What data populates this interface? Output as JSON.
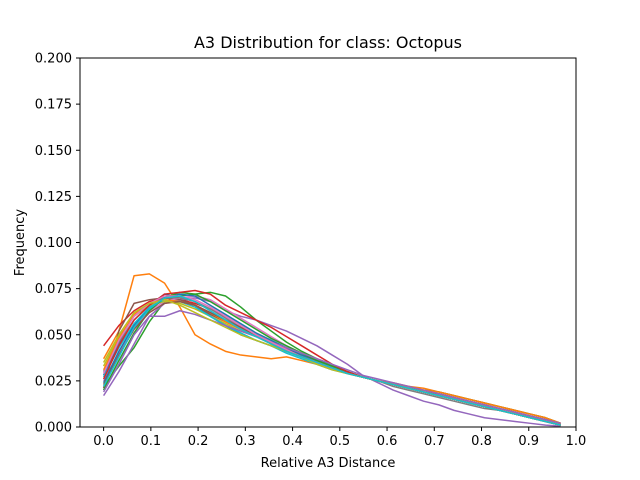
{
  "chart_data": {
    "type": "line",
    "title": "A3 Distribution for class: Octopus",
    "xlabel": "Relative A3 Distance",
    "ylabel": "Frequency",
    "xlim": [
      -0.05,
      1.0
    ],
    "ylim": [
      0.0,
      0.2
    ],
    "xticks": [
      "0.0",
      "0.1",
      "0.2",
      "0.3",
      "0.4",
      "0.5",
      "0.6",
      "0.7",
      "0.8",
      "0.9",
      "1.0"
    ],
    "yticks": [
      "0.000",
      "0.025",
      "0.050",
      "0.075",
      "0.100",
      "0.125",
      "0.150",
      "0.175",
      "0.200"
    ],
    "grid": false,
    "legend": "none",
    "x": [
      0.0,
      0.0323,
      0.0645,
      0.0968,
      0.129,
      0.1613,
      0.1935,
      0.2258,
      0.2581,
      0.2903,
      0.3226,
      0.3548,
      0.3871,
      0.4194,
      0.4516,
      0.4839,
      0.5161,
      0.5484,
      0.5806,
      0.6129,
      0.6452,
      0.6774,
      0.7097,
      0.7419,
      0.7742,
      0.8065,
      0.8387,
      0.871,
      0.9032,
      0.9355,
      0.9677
    ],
    "series": [
      {
        "color": "#1f77b4",
        "values": [
          0.028,
          0.045,
          0.058,
          0.066,
          0.072,
          0.07,
          0.066,
          0.06,
          0.055,
          0.05,
          0.047,
          0.044,
          0.041,
          0.038,
          0.035,
          0.032,
          0.029,
          0.027,
          0.025,
          0.023,
          0.021,
          0.019,
          0.017,
          0.015,
          0.013,
          0.011,
          0.009,
          0.007,
          0.005,
          0.003,
          0.001
        ]
      },
      {
        "color": "#ff7f0e",
        "values": [
          0.037,
          0.052,
          0.082,
          0.083,
          0.078,
          0.065,
          0.05,
          0.045,
          0.041,
          0.039,
          0.038,
          0.037,
          0.038,
          0.036,
          0.034,
          0.031,
          0.029,
          0.027,
          0.025,
          0.024,
          0.022,
          0.021,
          0.019,
          0.017,
          0.015,
          0.013,
          0.011,
          0.009,
          0.007,
          0.005,
          0.002
        ]
      },
      {
        "color": "#2ca02c",
        "values": [
          0.022,
          0.033,
          0.043,
          0.057,
          0.068,
          0.071,
          0.072,
          0.073,
          0.071,
          0.065,
          0.058,
          0.052,
          0.046,
          0.041,
          0.037,
          0.033,
          0.03,
          0.027,
          0.025,
          0.023,
          0.021,
          0.02,
          0.019,
          0.017,
          0.015,
          0.013,
          0.011,
          0.009,
          0.007,
          0.005,
          0.002
        ]
      },
      {
        "color": "#d62728",
        "values": [
          0.044,
          0.055,
          0.063,
          0.068,
          0.07,
          0.069,
          0.067,
          0.064,
          0.06,
          0.055,
          0.05,
          0.046,
          0.042,
          0.039,
          0.036,
          0.033,
          0.03,
          0.027,
          0.025,
          0.023,
          0.021,
          0.019,
          0.018,
          0.016,
          0.014,
          0.012,
          0.01,
          0.008,
          0.006,
          0.004,
          0.002
        ]
      },
      {
        "color": "#9467bd",
        "values": [
          0.017,
          0.03,
          0.045,
          0.06,
          0.067,
          0.069,
          0.07,
          0.068,
          0.063,
          0.06,
          0.058,
          0.055,
          0.052,
          0.048,
          0.044,
          0.039,
          0.034,
          0.028,
          0.024,
          0.02,
          0.017,
          0.014,
          0.012,
          0.009,
          0.007,
          0.005,
          0.004,
          0.003,
          0.002,
          0.001,
          0.0005
        ]
      },
      {
        "color": "#8c564b",
        "values": [
          0.021,
          0.052,
          0.067,
          0.069,
          0.07,
          0.069,
          0.066,
          0.061,
          0.057,
          0.053,
          0.05,
          0.046,
          0.042,
          0.038,
          0.035,
          0.032,
          0.03,
          0.027,
          0.025,
          0.023,
          0.021,
          0.019,
          0.017,
          0.015,
          0.013,
          0.011,
          0.009,
          0.007,
          0.005,
          0.003,
          0.001
        ]
      },
      {
        "color": "#e377c2",
        "values": [
          0.025,
          0.04,
          0.053,
          0.063,
          0.068,
          0.07,
          0.071,
          0.069,
          0.064,
          0.059,
          0.054,
          0.049,
          0.044,
          0.04,
          0.036,
          0.033,
          0.03,
          0.027,
          0.025,
          0.023,
          0.021,
          0.019,
          0.017,
          0.015,
          0.013,
          0.011,
          0.009,
          0.007,
          0.005,
          0.003,
          0.001
        ]
      },
      {
        "color": "#7f7f7f",
        "values": [
          0.03,
          0.046,
          0.058,
          0.066,
          0.07,
          0.07,
          0.068,
          0.064,
          0.059,
          0.054,
          0.05,
          0.046,
          0.042,
          0.038,
          0.035,
          0.032,
          0.029,
          0.027,
          0.025,
          0.022,
          0.02,
          0.018,
          0.016,
          0.014,
          0.012,
          0.01,
          0.009,
          0.007,
          0.005,
          0.003,
          0.001
        ]
      },
      {
        "color": "#bcbd22",
        "values": [
          0.033,
          0.049,
          0.06,
          0.066,
          0.068,
          0.067,
          0.064,
          0.06,
          0.056,
          0.052,
          0.049,
          0.046,
          0.043,
          0.04,
          0.036,
          0.033,
          0.03,
          0.027,
          0.025,
          0.023,
          0.021,
          0.019,
          0.017,
          0.015,
          0.013,
          0.011,
          0.009,
          0.007,
          0.005,
          0.003,
          0.001
        ]
      },
      {
        "color": "#17becf",
        "values": [
          0.027,
          0.043,
          0.056,
          0.065,
          0.069,
          0.068,
          0.065,
          0.06,
          0.055,
          0.051,
          0.047,
          0.044,
          0.04,
          0.037,
          0.034,
          0.031,
          0.029,
          0.027,
          0.025,
          0.023,
          0.021,
          0.019,
          0.017,
          0.015,
          0.013,
          0.011,
          0.009,
          0.007,
          0.005,
          0.003,
          0.001
        ]
      },
      {
        "color": "#1f77b4",
        "values": [
          0.024,
          0.041,
          0.055,
          0.064,
          0.07,
          0.072,
          0.071,
          0.066,
          0.061,
          0.056,
          0.051,
          0.047,
          0.043,
          0.039,
          0.036,
          0.033,
          0.03,
          0.027,
          0.025,
          0.023,
          0.021,
          0.019,
          0.017,
          0.015,
          0.013,
          0.011,
          0.009,
          0.007,
          0.005,
          0.003,
          0.001
        ]
      },
      {
        "color": "#ff7f0e",
        "values": [
          0.031,
          0.048,
          0.061,
          0.067,
          0.069,
          0.068,
          0.066,
          0.062,
          0.057,
          0.053,
          0.049,
          0.045,
          0.041,
          0.038,
          0.035,
          0.032,
          0.029,
          0.027,
          0.025,
          0.023,
          0.022,
          0.02,
          0.019,
          0.017,
          0.015,
          0.013,
          0.011,
          0.009,
          0.007,
          0.005,
          0.002
        ]
      },
      {
        "color": "#2ca02c",
        "values": [
          0.02,
          0.036,
          0.051,
          0.063,
          0.07,
          0.073,
          0.072,
          0.068,
          0.063,
          0.058,
          0.053,
          0.048,
          0.044,
          0.04,
          0.036,
          0.033,
          0.03,
          0.027,
          0.025,
          0.023,
          0.021,
          0.019,
          0.017,
          0.015,
          0.013,
          0.011,
          0.009,
          0.007,
          0.005,
          0.003,
          0.001
        ]
      },
      {
        "color": "#d62728",
        "values": [
          0.026,
          0.044,
          0.058,
          0.066,
          0.072,
          0.073,
          0.074,
          0.072,
          0.066,
          0.062,
          0.058,
          0.054,
          0.049,
          0.044,
          0.039,
          0.034,
          0.03,
          0.027,
          0.025,
          0.023,
          0.021,
          0.019,
          0.017,
          0.015,
          0.013,
          0.011,
          0.009,
          0.007,
          0.005,
          0.003,
          0.001
        ]
      },
      {
        "color": "#9467bd",
        "values": [
          0.019,
          0.034,
          0.05,
          0.06,
          0.06,
          0.063,
          0.061,
          0.058,
          0.055,
          0.052,
          0.049,
          0.046,
          0.043,
          0.04,
          0.037,
          0.034,
          0.031,
          0.028,
          0.026,
          0.024,
          0.022,
          0.02,
          0.018,
          0.016,
          0.014,
          0.012,
          0.01,
          0.008,
          0.006,
          0.004,
          0.002
        ]
      },
      {
        "color": "#8c564b",
        "values": [
          0.023,
          0.039,
          0.053,
          0.062,
          0.067,
          0.068,
          0.066,
          0.062,
          0.058,
          0.054,
          0.05,
          0.046,
          0.042,
          0.038,
          0.035,
          0.032,
          0.029,
          0.027,
          0.025,
          0.023,
          0.021,
          0.019,
          0.017,
          0.015,
          0.013,
          0.011,
          0.009,
          0.007,
          0.005,
          0.003,
          0.001
        ]
      },
      {
        "color": "#e377c2",
        "values": [
          0.029,
          0.047,
          0.06,
          0.067,
          0.071,
          0.071,
          0.069,
          0.065,
          0.06,
          0.055,
          0.05,
          0.046,
          0.042,
          0.038,
          0.035,
          0.032,
          0.029,
          0.027,
          0.025,
          0.023,
          0.021,
          0.019,
          0.017,
          0.015,
          0.013,
          0.011,
          0.009,
          0.007,
          0.005,
          0.003,
          0.001
        ]
      },
      {
        "color": "#bcbd22",
        "values": [
          0.035,
          0.05,
          0.062,
          0.067,
          0.069,
          0.066,
          0.062,
          0.058,
          0.054,
          0.05,
          0.047,
          0.044,
          0.041,
          0.038,
          0.034,
          0.031,
          0.029,
          0.027,
          0.025,
          0.023,
          0.021,
          0.019,
          0.017,
          0.015,
          0.013,
          0.011,
          0.009,
          0.007,
          0.005,
          0.003,
          0.001
        ]
      },
      {
        "color": "#17becf",
        "values": [
          0.022,
          0.038,
          0.054,
          0.064,
          0.07,
          0.071,
          0.068,
          0.063,
          0.058,
          0.053,
          0.049,
          0.045,
          0.041,
          0.038,
          0.035,
          0.032,
          0.029,
          0.027,
          0.025,
          0.023,
          0.021,
          0.019,
          0.017,
          0.015,
          0.013,
          0.011,
          0.009,
          0.007,
          0.005,
          0.003,
          0.001
        ]
      }
    ]
  }
}
